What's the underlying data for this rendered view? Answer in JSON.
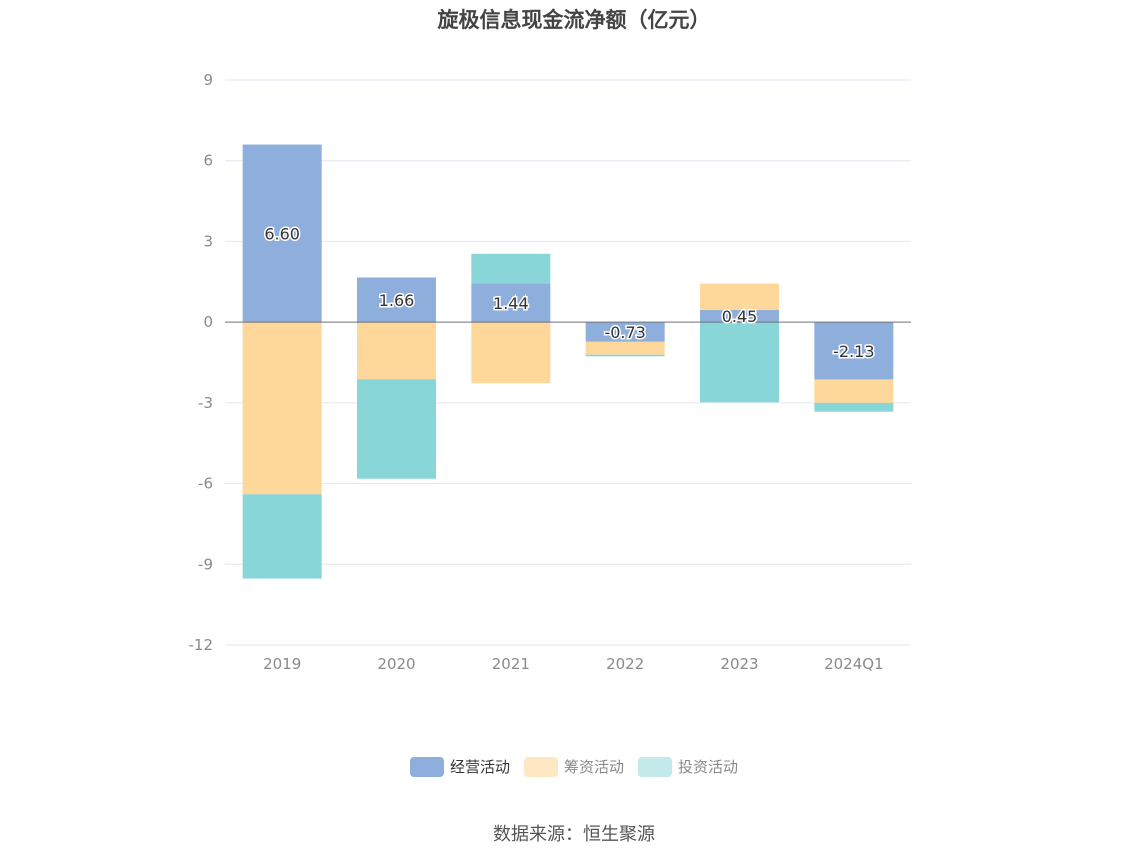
{
  "title": "旋极信息现金流净额（亿元）",
  "source": "数据来源：恒生聚源",
  "chart_data": {
    "type": "bar",
    "stacked": true,
    "categories": [
      "2019",
      "2020",
      "2021",
      "2022",
      "2023",
      "2024Q1"
    ],
    "ylim": [
      -12,
      9
    ],
    "yticks": [
      9,
      6,
      3,
      0,
      -3,
      -6,
      -9,
      -12
    ],
    "grid": true,
    "legend_position": "bottom",
    "series": [
      {
        "name": "经营活动",
        "color": "#8eaedb",
        "values": [
          6.6,
          1.66,
          1.44,
          -0.73,
          0.45,
          -2.13
        ],
        "labels": [
          "6.60",
          "1.66",
          "1.44",
          "-0.73",
          "0.45",
          "-2.13"
        ]
      },
      {
        "name": "筹资活动",
        "color": "#fed89b",
        "values": [
          -6.4,
          -2.12,
          -2.27,
          -0.48,
          0.98,
          -0.87
        ]
      },
      {
        "name": "投资活动",
        "color": "#88d6d8",
        "values": [
          -3.13,
          -3.7,
          1.1,
          -0.06,
          -2.98,
          -0.33
        ]
      }
    ]
  }
}
